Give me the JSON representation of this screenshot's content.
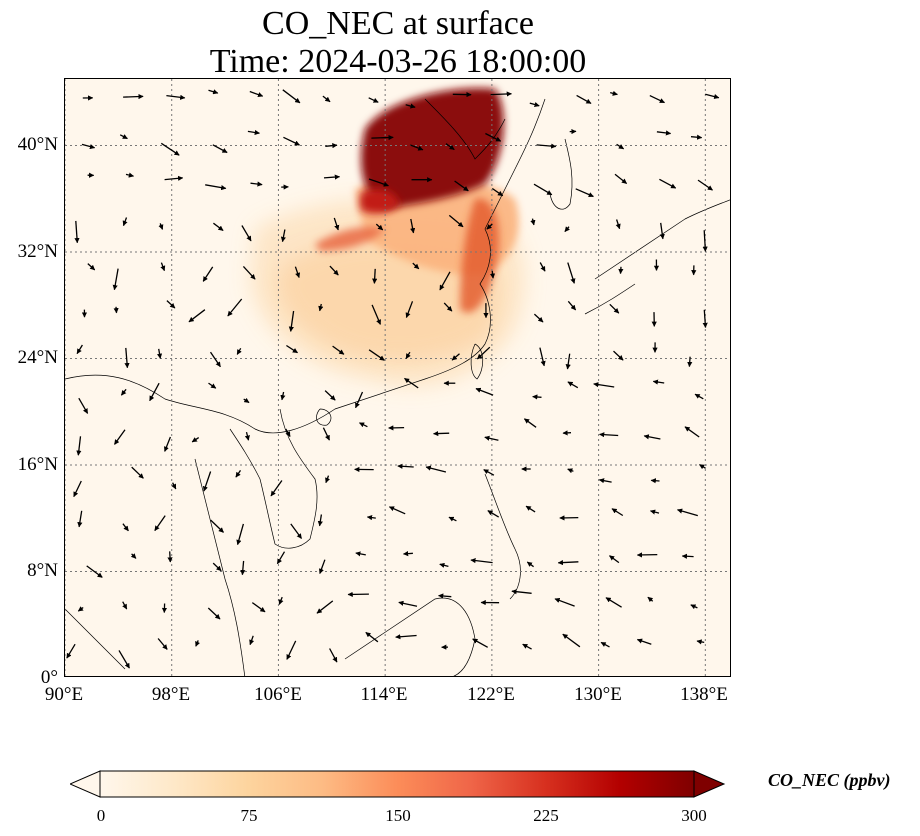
{
  "title": {
    "line1": "CO_NEC at surface",
    "line2": "Time: 2024-03-26 18:00:00"
  },
  "map": {
    "lon_range": [
      90,
      140
    ],
    "lat_range": [
      0,
      45
    ],
    "lat_ticks": [
      {
        "value": 0,
        "label": "0°"
      },
      {
        "value": 8,
        "label": "8°N"
      },
      {
        "value": 16,
        "label": "16°N"
      },
      {
        "value": 24,
        "label": "24°N"
      },
      {
        "value": 32,
        "label": "32°N"
      },
      {
        "value": 40,
        "label": "40°N"
      }
    ],
    "lon_ticks": [
      {
        "value": 90,
        "label": "90°E"
      },
      {
        "value": 98,
        "label": "98°E"
      },
      {
        "value": 106,
        "label": "106°E"
      },
      {
        "value": 114,
        "label": "114°E"
      },
      {
        "value": 122,
        "label": "122°E"
      },
      {
        "value": 130,
        "label": "130°E"
      },
      {
        "value": 138,
        "label": "138°E"
      }
    ],
    "gridlines": true
  },
  "colorbar": {
    "label": "CO_NEC (ppbv)",
    "min": 0,
    "max": 300,
    "extend": "both",
    "colormap": [
      "#fff7ec",
      "#fee8c8",
      "#fdd49e",
      "#fdbb84",
      "#fc8d59",
      "#ef6548",
      "#d7301f",
      "#b30000",
      "#7f0000"
    ],
    "ticks": [
      {
        "value": 0,
        "label": "0"
      },
      {
        "value": 75,
        "label": "75"
      },
      {
        "value": 150,
        "label": "150"
      },
      {
        "value": 225,
        "label": "225"
      },
      {
        "value": 300,
        "label": "300"
      }
    ]
  }
}
